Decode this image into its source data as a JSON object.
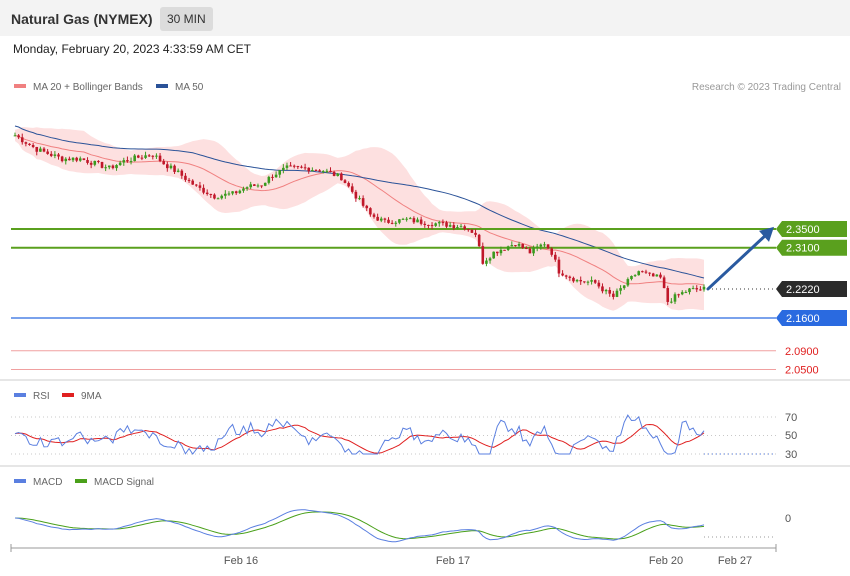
{
  "header": {
    "title": "Natural Gas (NYMEX)",
    "timeframe": "30 MIN",
    "timestamp": "Monday, February 20, 2023 4:33:59 AM CET"
  },
  "credit": "Research © 2023 Trading Central",
  "colors": {
    "bollinger": "#f08080",
    "bollinger_fill": "#fde0e0",
    "ma50": "#2a5298",
    "resistance": "#5aa01e",
    "support": "#2a6ae0",
    "support_secondary": "#e02020",
    "up_candle": "#3a9a1e",
    "down_candle": "#c0182a",
    "rsi": "#5a7fe0",
    "rsi_ma": "#e02020",
    "macd": "#5a7fe0",
    "macd_signal": "#4aa01a",
    "arrow": "#2a5aa0"
  },
  "chart_data": [
    {
      "type": "candlestick",
      "legend": [
        {
          "name": "MA 20 + Bollinger Bands",
          "color_key": "bollinger",
          "icon": "legend-swatch"
        },
        {
          "name": "MA 50",
          "color_key": "ma50",
          "icon": "legend-swatch"
        }
      ],
      "y_range": [
        2.02,
        2.58
      ],
      "x_labels": [
        "Feb 16",
        "Feb 17",
        "Feb 20",
        "Feb 27"
      ],
      "levels": [
        {
          "value": 2.35,
          "label": "2.3500",
          "kind": "resistance"
        },
        {
          "value": 2.31,
          "label": "2.3100",
          "kind": "resistance"
        },
        {
          "value": 2.222,
          "label": "2.2220",
          "kind": "last"
        },
        {
          "value": 2.16,
          "label": "2.1600",
          "kind": "pivot"
        },
        {
          "value": 2.09,
          "label": "2.0900",
          "kind": "support_text"
        },
        {
          "value": 2.05,
          "label": "2.0500",
          "kind": "support_text"
        }
      ],
      "anchors": [
        [
          0,
          2.55
        ],
        [
          6,
          2.52
        ],
        [
          13,
          2.5
        ],
        [
          18,
          2.5
        ],
        [
          22,
          2.49
        ],
        [
          26,
          2.48
        ],
        [
          30,
          2.495
        ],
        [
          35,
          2.505
        ],
        [
          38,
          2.51
        ],
        [
          41,
          2.49
        ],
        [
          45,
          2.47
        ],
        [
          50,
          2.44
        ],
        [
          55,
          2.42
        ],
        [
          60,
          2.425
        ],
        [
          64,
          2.44
        ],
        [
          68,
          2.445
        ],
        [
          71,
          2.465
        ],
        [
          75,
          2.48
        ],
        [
          80,
          2.48
        ],
        [
          85,
          2.475
        ],
        [
          90,
          2.46
        ],
        [
          94,
          2.42
        ],
        [
          98,
          2.38
        ],
        [
          102,
          2.365
        ],
        [
          108,
          2.37
        ],
        [
          112,
          2.365
        ],
        [
          118,
          2.36
        ],
        [
          124,
          2.355
        ],
        [
          127,
          2.34
        ],
        [
          129,
          2.28
        ],
        [
          132,
          2.3
        ],
        [
          138,
          2.32
        ],
        [
          142,
          2.3
        ],
        [
          146,
          2.32
        ],
        [
          148,
          2.3
        ],
        [
          150,
          2.26
        ],
        [
          155,
          2.24
        ],
        [
          160,
          2.235
        ],
        [
          163,
          2.215
        ],
        [
          165,
          2.205
        ],
        [
          168,
          2.23
        ],
        [
          172,
          2.26
        ],
        [
          175,
          2.25
        ],
        [
          178,
          2.245
        ],
        [
          180,
          2.195
        ],
        [
          183,
          2.21
        ],
        [
          186,
          2.22
        ],
        [
          190,
          2.222
        ]
      ],
      "anchors_note": "pairs of [bar index, price] the candle path follows",
      "ma20_start": 2.49,
      "ma20_end": 2.26,
      "ma50_start": 2.45,
      "ma50_end": 2.3
    },
    {
      "type": "line",
      "name": "RSI panel",
      "legend": [
        {
          "name": "RSI",
          "color_key": "rsi"
        },
        {
          "name": "9MA",
          "color_key": "rsi_ma"
        }
      ],
      "y_range": [
        20,
        80
      ],
      "y_ticks": [
        "70",
        "50",
        "30"
      ]
    },
    {
      "type": "line",
      "name": "MACD panel",
      "legend": [
        {
          "name": "MACD",
          "color_key": "macd"
        },
        {
          "name": "MACD Signal",
          "color_key": "macd_signal"
        }
      ],
      "y_ticks": [
        "0"
      ],
      "x_labels": [
        "Feb 16",
        "Feb 17",
        "Feb 20",
        "Feb 27"
      ]
    }
  ]
}
